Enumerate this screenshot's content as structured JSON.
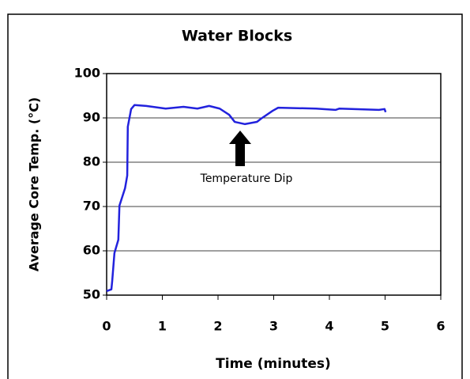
{
  "chart_data": {
    "type": "line",
    "title": "Water Blocks",
    "x_label": "Time (minutes)",
    "y_label": "Average Core Temp. (°C)",
    "annotation": "Temperature Dip",
    "xlim": [
      0,
      6
    ],
    "xticks": [
      0,
      1,
      2,
      3,
      4,
      5,
      6
    ],
    "ylim": [
      50,
      100
    ],
    "yticks": [
      50,
      60,
      70,
      80,
      90,
      100
    ],
    "grid": true,
    "series": [
      {
        "name": "Water Blocks",
        "color": "#2222dd",
        "x": [
          0,
          0.085,
          0.1,
          0.14,
          0.21,
          0.23,
          0.33,
          0.37,
          0.38,
          0.44,
          0.5,
          0.71,
          1.06,
          1.38,
          1.63,
          1.84,
          2.03,
          2.2,
          2.3,
          2.48,
          2.7,
          2.77,
          2.98,
          3.08,
          3.76,
          4.11,
          4.18,
          4.89,
          4.99,
          5.01
        ],
        "values": [
          50.9,
          51.3,
          53.2,
          59.5,
          62.5,
          70.2,
          74.1,
          77,
          88,
          92,
          92.9,
          92.7,
          92.1,
          92.5,
          92.1,
          92.7,
          92.1,
          90.7,
          89.1,
          88.6,
          89.1,
          89.8,
          91.6,
          92.3,
          92.1,
          91.8,
          92.1,
          91.8,
          92,
          91.3
        ]
      }
    ]
  }
}
